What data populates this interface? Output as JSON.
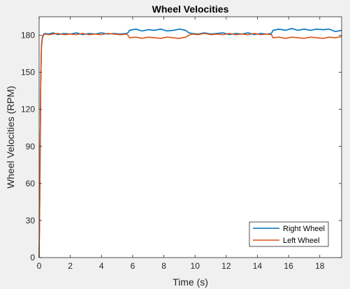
{
  "chart_data": {
    "type": "line",
    "title": "Wheel Velocities",
    "xlabel": "Time (s)",
    "ylabel": "Wheel Velocities (RPM)",
    "xlim": [
      0,
      19.4
    ],
    "ylim": [
      0,
      195
    ],
    "xticks": [
      0,
      2,
      4,
      6,
      8,
      10,
      12,
      14,
      16,
      18
    ],
    "yticks": [
      0,
      30,
      60,
      90,
      120,
      150,
      180
    ],
    "grid": false,
    "legend_position": "bottom-right",
    "series": [
      {
        "name": "Right Wheel",
        "color": "#0072bd",
        "x": [
          0,
          0.05,
          0.1,
          0.15,
          0.2,
          0.25,
          0.3,
          0.4,
          0.6,
          0.9,
          1.2,
          1.6,
          2.0,
          2.4,
          2.8,
          3.2,
          3.6,
          4.0,
          4.4,
          4.8,
          5.2,
          5.6,
          5.7,
          5.8,
          6.2,
          6.6,
          7.0,
          7.4,
          7.8,
          8.2,
          8.6,
          9.0,
          9.4,
          9.6,
          9.8,
          10.2,
          10.6,
          11.0,
          11.4,
          11.8,
          12.2,
          12.6,
          13.0,
          13.4,
          13.8,
          14.2,
          14.6,
          14.9,
          15.0,
          15.4,
          15.8,
          16.2,
          16.6,
          17.0,
          17.4,
          17.8,
          18.2,
          18.6,
          19.0,
          19.4
        ],
        "y": [
          0,
          60,
          140,
          172,
          178,
          180,
          181,
          181.5,
          181,
          182,
          180.5,
          181.5,
          181,
          182,
          180.5,
          181.5,
          181,
          182,
          181,
          181.5,
          181,
          181.5,
          182,
          184,
          185,
          183.5,
          184.5,
          184,
          185,
          183.5,
          184,
          185,
          184,
          182,
          181.5,
          181,
          182,
          181,
          181.5,
          182,
          180.5,
          181.5,
          181,
          182,
          180.5,
          181.5,
          181,
          181.5,
          184,
          185,
          184,
          185.5,
          184,
          185,
          184,
          185,
          184.5,
          185,
          183,
          184
        ]
      },
      {
        "name": "Left Wheel",
        "color": "#d95319",
        "x": [
          0,
          0.05,
          0.1,
          0.15,
          0.2,
          0.25,
          0.3,
          0.4,
          0.6,
          0.9,
          1.2,
          1.6,
          2.0,
          2.4,
          2.8,
          3.2,
          3.6,
          4.0,
          4.4,
          4.8,
          5.2,
          5.6,
          5.7,
          5.8,
          6.2,
          6.6,
          7.0,
          7.4,
          7.8,
          8.2,
          8.6,
          9.0,
          9.4,
          9.6,
          9.8,
          10.2,
          10.6,
          11.0,
          11.4,
          11.8,
          12.2,
          12.6,
          13.0,
          13.4,
          13.8,
          14.2,
          14.6,
          14.9,
          15.0,
          15.4,
          15.8,
          16.2,
          16.6,
          17.0,
          17.4,
          17.8,
          18.2,
          18.6,
          19.0,
          19.4
        ],
        "y": [
          0,
          58,
          136,
          170,
          177,
          179,
          180.5,
          181,
          180.5,
          181,
          181.5,
          180.5,
          181,
          180.5,
          181.5,
          180.5,
          181,
          180.5,
          181.5,
          181,
          180.5,
          181,
          180,
          178,
          178.5,
          177.5,
          178.5,
          178,
          177.5,
          178.5,
          178,
          177.5,
          178.5,
          180,
          181,
          180.5,
          181.5,
          180.5,
          181,
          180.5,
          181.5,
          180.5,
          181,
          180.5,
          181.5,
          180.5,
          181,
          180.5,
          178,
          178.5,
          177.5,
          178.5,
          178,
          177.5,
          178.5,
          178,
          177.5,
          178.5,
          178,
          179
        ]
      }
    ]
  }
}
